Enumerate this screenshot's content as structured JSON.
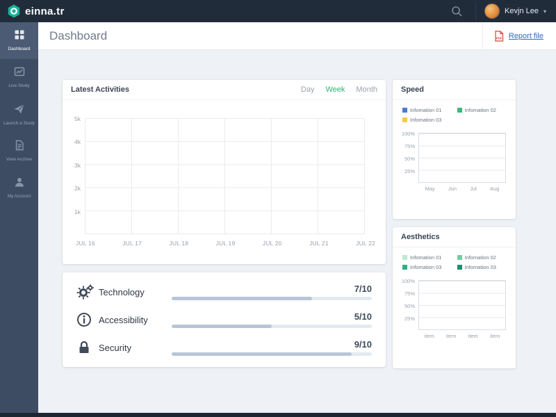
{
  "topbar": {
    "brand": "einna.tr",
    "user_name": "Kevjn Lee"
  },
  "sidebar": {
    "items": [
      {
        "label": "Dashboard",
        "icon": "dashboard-icon",
        "active": true
      },
      {
        "label": "Live Study",
        "icon": "live-study-icon",
        "active": false
      },
      {
        "label": "Launch a Study",
        "icon": "launch-study-icon",
        "active": false
      },
      {
        "label": "View Archive",
        "icon": "view-archive-icon",
        "active": false
      },
      {
        "label": "My Account",
        "icon": "my-account-icon",
        "active": false
      }
    ]
  },
  "header": {
    "title": "Dashboard",
    "report_link": "Report file",
    "report_icon": "pdf-icon"
  },
  "activities": {
    "title": "Latest Activities",
    "tabs": {
      "day": "Day",
      "week": "Week",
      "month": "Month",
      "active": "Week"
    },
    "chart_data": {
      "type": "line",
      "x": [
        "JUL 16",
        "JUL 17",
        "JUL 18",
        "JUL 19",
        "JUL 20",
        "JUL 21",
        "JUL 22"
      ],
      "yticks": [
        "5k",
        "4k",
        "3k",
        "2k",
        "1k"
      ],
      "ylim": [
        0,
        5000
      ],
      "grid": true,
      "series": []
    }
  },
  "scores": {
    "items": [
      {
        "label": "Technology",
        "value": "7/10",
        "score": 7,
        "max": 10,
        "icon": "gears-icon"
      },
      {
        "label": "Accessibility",
        "value": "5/10",
        "score": 5,
        "max": 10,
        "icon": "info-icon"
      },
      {
        "label": "Security",
        "value": "9/10",
        "score": 9,
        "max": 10,
        "icon": "lock-icon"
      }
    ],
    "bar_fill_color": "#b7c6d7",
    "bar_track_color": "#e4eaf0"
  },
  "speed": {
    "title": "Speed",
    "legend": [
      {
        "label": "Infomation 01",
        "color": "#4a7bd0"
      },
      {
        "label": "Infomation 02",
        "color": "#3bb878"
      },
      {
        "label": "Infomation 03",
        "color": "#f7c948"
      }
    ],
    "chart_data": {
      "type": "line",
      "x": [
        "May",
        "Jun",
        "Jul",
        "Aug"
      ],
      "yticks": [
        "100%",
        "75%",
        "50%",
        "25%"
      ],
      "ylim": [
        0,
        100
      ],
      "grid": true,
      "series": []
    }
  },
  "aesthetics": {
    "title": "Aesthetics",
    "legend": [
      {
        "label": "Infomation 01",
        "color": "#bde9d4"
      },
      {
        "label": "Infomation 02",
        "color": "#6fcf9f"
      },
      {
        "label": "Infomation 03",
        "color": "#2fae84"
      },
      {
        "label": "Infomation 03",
        "color": "#1e8e6e"
      }
    ],
    "chart_data": {
      "type": "line",
      "x": [
        "item",
        "item",
        "item",
        "item"
      ],
      "yticks": [
        "100%",
        "75%",
        "50%",
        "25%"
      ],
      "ylim": [
        0,
        100
      ],
      "grid": true,
      "series": []
    }
  }
}
